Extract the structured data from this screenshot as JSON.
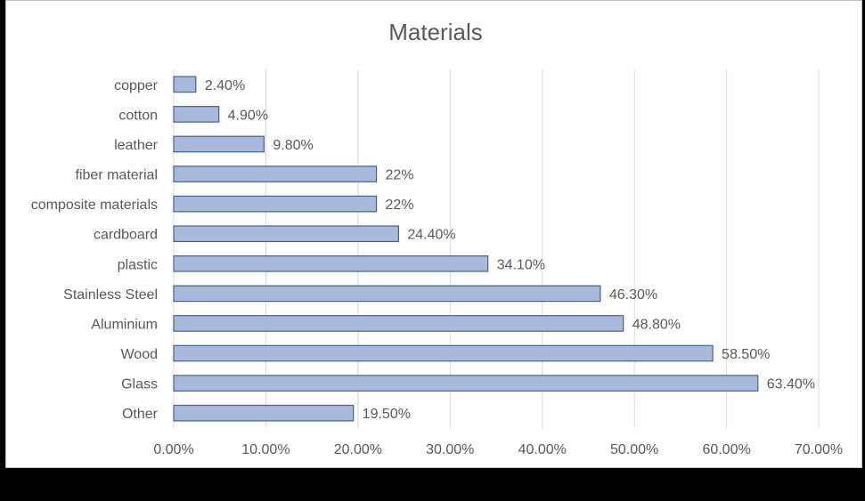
{
  "chart_data": {
    "type": "bar",
    "orientation": "horizontal",
    "title": "Materials",
    "xlabel": "",
    "ylabel": "",
    "categories": [
      "copper",
      "cotton",
      "leather",
      "fiber material",
      "composite materials",
      "cardboard",
      "plastic",
      "Stainless Steel",
      "Aluminium",
      "Wood",
      "Glass",
      "Other"
    ],
    "values": [
      2.4,
      4.9,
      9.8,
      22,
      22,
      24.4,
      34.1,
      46.3,
      48.8,
      58.5,
      63.4,
      19.5
    ],
    "value_labels": [
      "2.40%",
      "4.90%",
      "9.80%",
      "22%",
      "22%",
      "24.40%",
      "34.10%",
      "46.30%",
      "48.80%",
      "58.50%",
      "63.40%",
      "19.50%"
    ],
    "xlim": [
      0,
      70
    ],
    "x_ticks": [
      0,
      10,
      20,
      30,
      40,
      50,
      60,
      70
    ],
    "x_tick_labels": [
      "0.00%",
      "10.00%",
      "20.00%",
      "30.00%",
      "40.00%",
      "50.00%",
      "60.00%",
      "70.00%"
    ],
    "grid": "vertical",
    "legend": "none",
    "colors": {
      "bar_fill": "#a8b9db",
      "bar_edge": "#44628f",
      "grid": "#d9d9d9",
      "text": "#595959"
    }
  }
}
